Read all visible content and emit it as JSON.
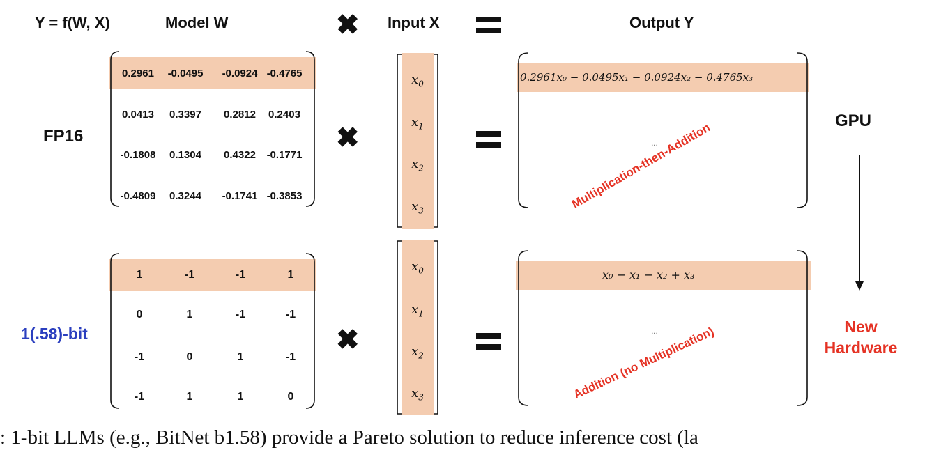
{
  "header": {
    "formula": "Y = f(W, X)",
    "model": "Model W",
    "input": "Input X",
    "output": "Output Y"
  },
  "top": {
    "label": "FP16",
    "matrix": [
      [
        "0.2961",
        "-0.0495",
        "-0.0924",
        "-0.4765"
      ],
      [
        "0.0413",
        "0.3397",
        "0.2812",
        "0.2403"
      ],
      [
        "-0.1808",
        "0.1304",
        "0.4322",
        "-0.1771"
      ],
      [
        "-0.4809",
        "0.3244",
        "-0.1741",
        "-0.3853"
      ]
    ],
    "output_row": "0.2961x₀ − 0.0495x₁ − 0.0924x₂ − 0.4765x₃",
    "ellipsis": "...",
    "note": "Multiplication-then-Addition",
    "hardware": "GPU"
  },
  "bottom": {
    "label": "1(.58)-bit",
    "matrix": [
      [
        "1",
        "-1",
        "-1",
        "1"
      ],
      [
        "0",
        "1",
        "-1",
        "-1"
      ],
      [
        "-1",
        "0",
        "1",
        "-1"
      ],
      [
        "-1",
        "1",
        "1",
        "0"
      ]
    ],
    "output_row": "x₀ − x₁ − x₂ + x₃",
    "ellipsis": "...",
    "note": "Addition (no Multiplication)",
    "hardware_line1": "New",
    "hardware_line2": "Hardware"
  },
  "input_vector": [
    "x",
    "x",
    "x",
    "x"
  ],
  "input_subscripts": [
    "0",
    "1",
    "2",
    "3"
  ],
  "caption": ": 1-bit LLMs (e.g., BitNet b1.58) provide a Pareto solution to reduce inference cost (la",
  "colors": {
    "highlight": "#f4ccb0",
    "accent_red": "#e53224",
    "accent_blue": "#2b3fbf",
    "operator": "#111111"
  },
  "icons": {
    "times": "heavy-multiplication-x",
    "equals": "equals-sign",
    "arrow": "down-arrow"
  }
}
